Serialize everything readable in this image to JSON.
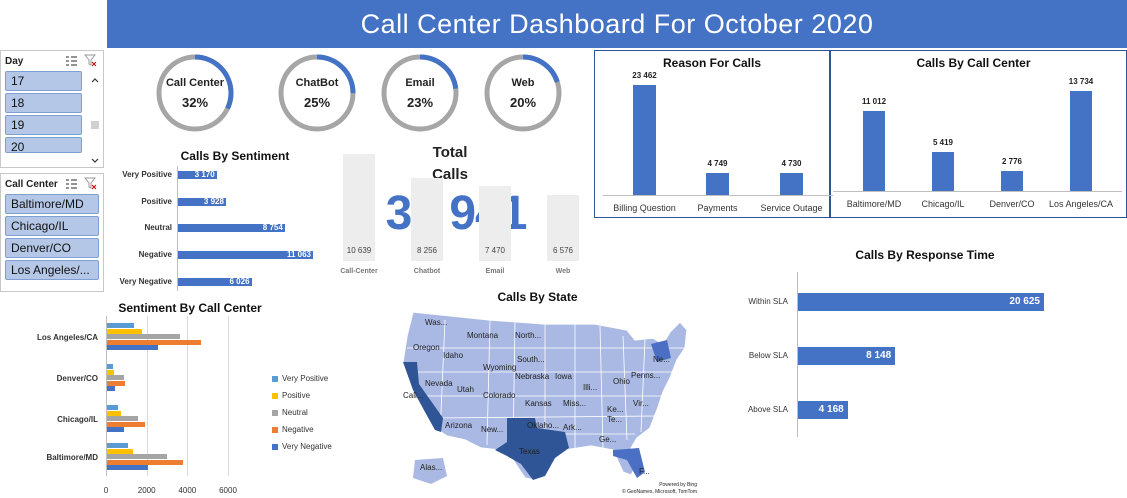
{
  "title": "Call Center Dashboard For October 2020",
  "colors": {
    "accent": "#4472C4",
    "very_positive": "#5B9BD5",
    "positive": "#FFC000",
    "neutral": "#A5A5A5",
    "negative": "#ED7D31",
    "very_negative": "#4472C4"
  },
  "slicers": {
    "day": {
      "label": "Day",
      "items": [
        "17",
        "18",
        "19",
        "20"
      ]
    },
    "call_center": {
      "label": "Call Center",
      "items": [
        "Baltimore/MD",
        "Chicago/IL",
        "Denver/CO",
        "Los Angeles/..."
      ]
    }
  },
  "channels": [
    {
      "label": "Call Center",
      "pct": "32%",
      "value": 0.32
    },
    {
      "label": "ChatBot",
      "pct": "25%",
      "value": 0.25
    },
    {
      "label": "Email",
      "pct": "23%",
      "value": 0.23
    },
    {
      "label": "Web",
      "pct": "20%",
      "value": 0.2
    }
  ],
  "total": {
    "title_line1": "Total",
    "title_line2": "Calls",
    "value": "32 941",
    "columns": [
      {
        "category": "Call-Center",
        "value": 10639,
        "label": "10 639"
      },
      {
        "category": "Chatbot",
        "value": 8256,
        "label": "8 256"
      },
      {
        "category": "Email",
        "value": 7470,
        "label": "7 470"
      },
      {
        "category": "Web",
        "value": 6576,
        "label": "6 576"
      }
    ]
  },
  "chart_data": [
    {
      "id": "sentiment",
      "type": "bar",
      "orientation": "horizontal",
      "title": "Calls By Sentiment",
      "categories": [
        "Very Positive",
        "Positive",
        "Neutral",
        "Negative",
        "Very Negative"
      ],
      "values": [
        3170,
        3928,
        8754,
        11063,
        6026
      ],
      "labels": [
        "3 170",
        "3 928",
        "8 754",
        "11 063",
        "6 026"
      ]
    },
    {
      "id": "reason",
      "type": "bar",
      "title": "Reason For Calls",
      "categories": [
        "Billing Question",
        "Payments",
        "Service Outage"
      ],
      "values": [
        23462,
        4749,
        4730
      ],
      "labels": [
        "23 462",
        "4 749",
        "4 730"
      ]
    },
    {
      "id": "center",
      "type": "bar",
      "title": "Calls By Call Center",
      "categories": [
        "Baltimore/MD",
        "Chicago/IL",
        "Denver/CO",
        "Los Angeles/CA"
      ],
      "values": [
        11012,
        5419,
        2776,
        13734
      ],
      "labels": [
        "11 012",
        "5 419",
        "2 776",
        "13 734"
      ]
    },
    {
      "id": "response",
      "type": "bar",
      "orientation": "horizontal",
      "title": "Calls By Response Time",
      "categories": [
        "Within SLA",
        "Below SLA",
        "Above SLA"
      ],
      "values": [
        20625,
        8148,
        4168
      ],
      "labels": [
        "20 625",
        "8 148",
        "4 168"
      ]
    },
    {
      "id": "sentiment_by_center",
      "type": "bar",
      "orientation": "horizontal",
      "title": "Sentiment By Call Center",
      "categories": [
        "Los Angeles/CA",
        "Denver/CO",
        "Chicago/IL",
        "Baltimore/MD"
      ],
      "series": [
        {
          "name": "Very Positive",
          "values": [
            1350,
            300,
            550,
            1050
          ]
        },
        {
          "name": "Positive",
          "values": [
            1700,
            350,
            700,
            1300
          ]
        },
        {
          "name": "Neutral",
          "values": [
            3600,
            850,
            1500,
            2950
          ]
        },
        {
          "name": "Negative",
          "values": [
            4600,
            900,
            1850,
            3750
          ]
        },
        {
          "name": "Very Negative",
          "values": [
            2500,
            400,
            850,
            2000
          ]
        }
      ],
      "xticks": [
        "0",
        "2000",
        "4000",
        "6000"
      ],
      "xlim": [
        0,
        6000
      ]
    }
  ],
  "map": {
    "title": "Calls By State",
    "state_labels": [
      "Was...",
      "Montana",
      "North...",
      "Oregon",
      "Idaho",
      "South...",
      "Wyoming",
      "Nebraska",
      "Iowa",
      "Ohio",
      "Penns...",
      "Ne...",
      "Nevada",
      "Utah",
      "Colorado",
      "Illi...",
      "Cali...",
      "Kansas",
      "Miss...",
      "Vir...",
      "Ke...",
      "Te...",
      "Arizona",
      "New...",
      "Oklaho...",
      "Ark...",
      "Ge...",
      "Texas",
      "Alas...",
      "F..."
    ],
    "credit_line1": "Powered by Bing",
    "credit_line2": "© GeoNames, Microsoft, TomTom"
  }
}
